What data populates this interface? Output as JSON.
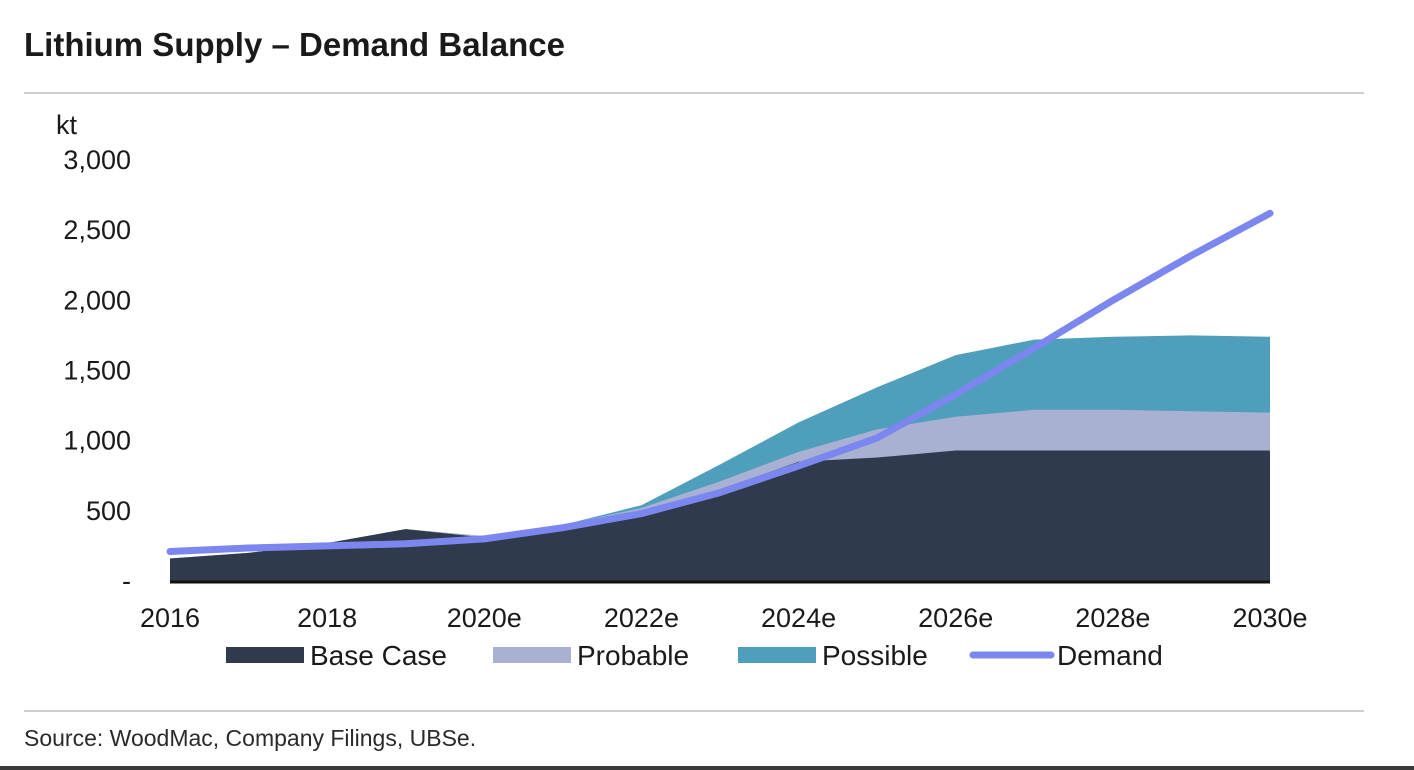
{
  "title": "Lithium Supply – Demand Balance",
  "source": "Source:  WoodMac, Company Filings, UBSe.",
  "colors": {
    "base_case": "#2f3b4c",
    "probable": "#a9b1d3",
    "possible": "#4f9fbc",
    "demand": "#7b86ee"
  },
  "chart_data": {
    "type": "area",
    "ylabel": "kt",
    "ylim": [
      0,
      3000
    ],
    "y_ticks": [
      0,
      500,
      1000,
      1500,
      2000,
      2500,
      3000
    ],
    "y_tick_labels": [
      "-",
      "500",
      "1,000",
      "1,500",
      "2,000",
      "2,500",
      "3,000"
    ],
    "x_tick_labels": [
      "2016",
      "2018",
      "2020e",
      "2022e",
      "2024e",
      "2026e",
      "2028e",
      "2030e"
    ],
    "x": [
      "2016",
      "2017",
      "2018",
      "2019",
      "2020e",
      "2021e",
      "2022e",
      "2023e",
      "2024e",
      "2025e",
      "2026e",
      "2027e",
      "2028e",
      "2029e",
      "2030e"
    ],
    "series": [
      {
        "name": "Base Case",
        "kind": "area",
        "values": [
          160,
          200,
          270,
          370,
          310,
          380,
          500,
          650,
          850,
          880,
          930,
          930,
          930,
          930,
          930
        ]
      },
      {
        "name": "Probable",
        "kind": "area",
        "values": [
          160,
          200,
          270,
          370,
          320,
          400,
          520,
          710,
          920,
          1080,
          1170,
          1220,
          1220,
          1210,
          1200
        ]
      },
      {
        "name": "Possible",
        "kind": "area",
        "values": [
          160,
          200,
          270,
          370,
          320,
          400,
          540,
          830,
          1130,
          1380,
          1610,
          1720,
          1740,
          1750,
          1740
        ]
      },
      {
        "name": "Demand",
        "kind": "line",
        "values": [
          210,
          235,
          250,
          265,
          300,
          380,
          480,
          630,
          820,
          1020,
          1330,
          1660,
          2000,
          2320,
          2620
        ]
      }
    ],
    "legend": [
      "Base Case",
      "Probable",
      "Possible",
      "Demand"
    ],
    "legend_position": "bottom",
    "grid": false
  }
}
